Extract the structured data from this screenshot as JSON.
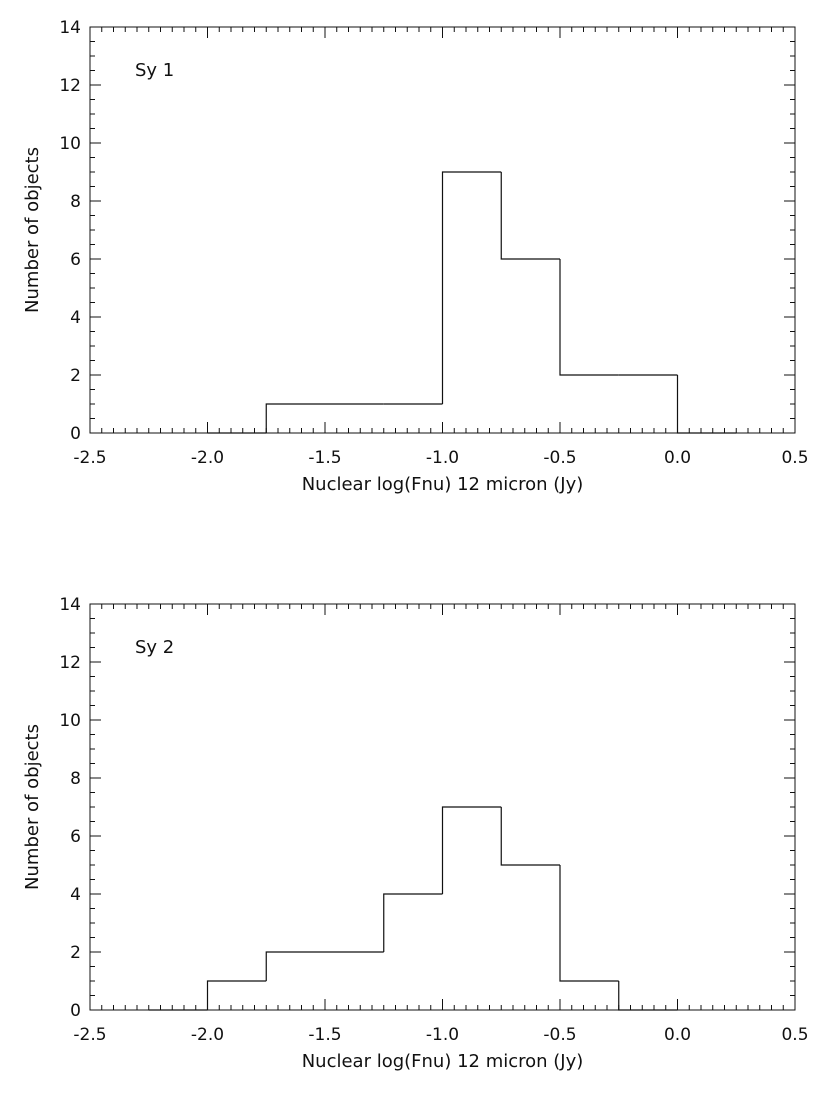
{
  "chart_data": [
    {
      "type": "histogram",
      "annotation": "Sy 1",
      "xlabel": "Nuclear log(Fnu) 12 micron (Jy)",
      "ylabel": "Number of objects",
      "xlim": [
        -2.5,
        0.5
      ],
      "ylim": [
        0,
        14
      ],
      "x_ticks": [
        -2.5,
        -2.0,
        -1.5,
        -1.0,
        -0.5,
        0.0,
        0.5
      ],
      "x_tick_labels": [
        "-2.5",
        "-2.0",
        "-1.5",
        "-1.0",
        "-0.5",
        "0.0",
        "0.5"
      ],
      "y_ticks": [
        0,
        2,
        4,
        6,
        8,
        10,
        12,
        14
      ],
      "y_tick_labels": [
        "0",
        "2",
        "4",
        "6",
        "8",
        "10",
        "12",
        "14"
      ],
      "bin_edges": [
        -2.0,
        -1.75,
        -1.5,
        -1.25,
        -1.0,
        -0.75,
        -0.5,
        -0.25,
        0.0,
        0.25
      ],
      "counts": [
        0,
        1,
        1,
        1,
        9,
        6,
        2,
        2,
        0
      ]
    },
    {
      "type": "histogram",
      "annotation": "Sy 2",
      "xlabel": "Nuclear log(Fnu) 12 micron (Jy)",
      "ylabel": "Number of objects",
      "xlim": [
        -2.5,
        0.5
      ],
      "ylim": [
        0,
        14
      ],
      "x_ticks": [
        -2.5,
        -2.0,
        -1.5,
        -1.0,
        -0.5,
        0.0,
        0.5
      ],
      "x_tick_labels": [
        "-2.5",
        "-2.0",
        "-1.5",
        "-1.0",
        "-0.5",
        "0.0",
        "0.5"
      ],
      "y_ticks": [
        0,
        2,
        4,
        6,
        8,
        10,
        12,
        14
      ],
      "y_tick_labels": [
        "0",
        "2",
        "4",
        "6",
        "8",
        "10",
        "12",
        "14"
      ],
      "bin_edges": [
        -2.25,
        -2.0,
        -1.75,
        -1.5,
        -1.25,
        -1.0,
        -0.75,
        -0.5,
        -0.25,
        0.0
      ],
      "counts": [
        0,
        1,
        2,
        2,
        4,
        7,
        5,
        1,
        0
      ]
    }
  ]
}
